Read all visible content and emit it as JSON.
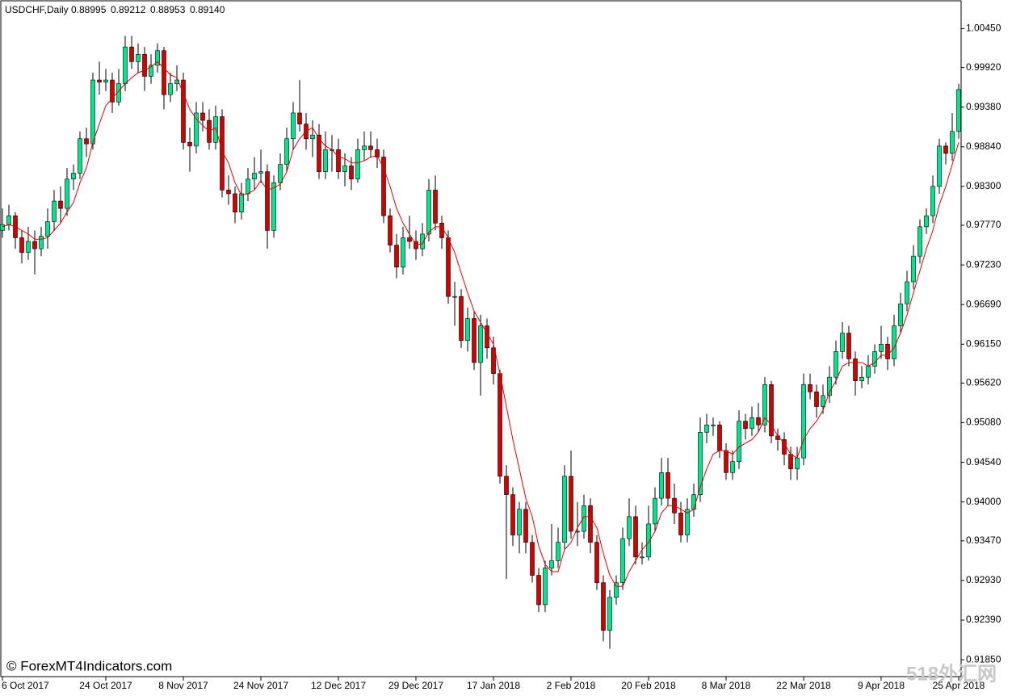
{
  "chart_data": {
    "type": "candlestick",
    "title": "USDCHF,Daily",
    "quote": [
      "0.88995",
      "0.89212",
      "0.88953",
      "0.89140"
    ],
    "watermark": "© ForexMT4Indicators.com",
    "corner_mark": "518外汇网",
    "bull_color": "#00e68a",
    "bear_color": "#d40000",
    "wick_color": "#000000",
    "ylim": [
      0.9162,
      1.0084
    ],
    "yticks": [
      {
        "value": 1.0045,
        "label": "1.00450"
      },
      {
        "value": 0.9992,
        "label": "0.99920"
      },
      {
        "value": 0.9938,
        "label": "0.99380"
      },
      {
        "value": 0.9884,
        "label": "0.98840"
      },
      {
        "value": 0.983,
        "label": "0.98300"
      },
      {
        "value": 0.9777,
        "label": "0.97770"
      },
      {
        "value": 0.9723,
        "label": "0.97230"
      },
      {
        "value": 0.9669,
        "label": "0.96690"
      },
      {
        "value": 0.9615,
        "label": "0.96150"
      },
      {
        "value": 0.9562,
        "label": "0.95620"
      },
      {
        "value": 0.9508,
        "label": "0.95080"
      },
      {
        "value": 0.9454,
        "label": "0.94540"
      },
      {
        "value": 0.94,
        "label": "0.94000"
      },
      {
        "value": 0.9347,
        "label": "0.93470"
      },
      {
        "value": 0.9293,
        "label": "0.92930"
      },
      {
        "value": 0.9239,
        "label": "0.92390"
      },
      {
        "value": 0.9185,
        "label": "0.91850"
      }
    ],
    "categories": [
      "6 Oct 2017",
      null,
      null,
      null,
      null,
      null,
      null,
      null,
      null,
      null,
      null,
      null,
      null,
      null,
      null,
      null,
      "24 Oct 2017",
      null,
      null,
      null,
      null,
      null,
      null,
      null,
      null,
      null,
      null,
      null,
      "8 Nov 2017",
      null,
      null,
      null,
      null,
      null,
      null,
      null,
      null,
      null,
      null,
      null,
      "24 Nov 2017",
      null,
      null,
      null,
      null,
      null,
      null,
      null,
      null,
      null,
      null,
      null,
      "12 Dec 2017",
      null,
      null,
      null,
      null,
      null,
      null,
      null,
      null,
      null,
      null,
      null,
      "29 Dec 2017",
      null,
      null,
      null,
      null,
      null,
      null,
      null,
      null,
      null,
      null,
      null,
      "17 Jan 2018",
      null,
      null,
      null,
      null,
      null,
      null,
      null,
      null,
      null,
      null,
      null,
      "2 Feb 2018",
      null,
      null,
      null,
      null,
      null,
      null,
      null,
      null,
      null,
      null,
      null,
      "20 Feb 2018",
      null,
      null,
      null,
      null,
      null,
      null,
      null,
      null,
      null,
      null,
      null,
      "8 Mar 2018",
      null,
      null,
      null,
      null,
      null,
      null,
      null,
      null,
      null,
      null,
      null,
      "22 Mar 2018",
      null,
      null,
      null,
      null,
      null,
      null,
      null,
      null,
      null,
      null,
      null,
      "9 Apr 2018",
      null,
      null,
      null,
      null,
      null,
      null,
      null,
      null,
      null,
      null,
      null,
      "25 Apr 2018"
    ],
    "candles": [
      [
        0.977,
        0.98,
        0.976,
        0.9778
      ],
      [
        0.9778,
        0.9805,
        0.977,
        0.979
      ],
      [
        0.979,
        0.9795,
        0.9745,
        0.976
      ],
      [
        0.976,
        0.977,
        0.9725,
        0.974
      ],
      [
        0.974,
        0.9775,
        0.973,
        0.9755
      ],
      [
        0.9755,
        0.977,
        0.971,
        0.9745
      ],
      [
        0.9745,
        0.9775,
        0.9735,
        0.9762
      ],
      [
        0.9762,
        0.98,
        0.9745,
        0.9782
      ],
      [
        0.9782,
        0.9825,
        0.977,
        0.981
      ],
      [
        0.981,
        0.983,
        0.978,
        0.98
      ],
      [
        0.98,
        0.9855,
        0.979,
        0.984
      ],
      [
        0.984,
        0.986,
        0.9825,
        0.9848
      ],
      [
        0.9848,
        0.9905,
        0.984,
        0.9895
      ],
      [
        0.9895,
        0.991,
        0.987,
        0.9888
      ],
      [
        0.9888,
        0.9985,
        0.988,
        0.9975
      ],
      [
        0.9975,
        1.0,
        0.9955,
        0.9972
      ],
      [
        0.9972,
        0.999,
        0.996,
        0.9975
      ],
      [
        0.9975,
        0.9985,
        0.993,
        0.9945
      ],
      [
        0.9945,
        0.999,
        0.994,
        0.997
      ],
      [
        0.997,
        1.0035,
        0.996,
        1.002
      ],
      [
        1.002,
        1.0035,
        0.999,
        1.0
      ],
      [
        1.0,
        1.0025,
        0.9985,
        1.001
      ],
      [
        1.001,
        1.002,
        0.996,
        0.998
      ],
      [
        0.998,
        1.001,
        0.997,
        0.9995
      ],
      [
        0.9995,
        1.0025,
        0.9985,
        1.0015
      ],
      [
        1.0015,
        1.002,
        0.9935,
        0.9955
      ],
      [
        0.9955,
        0.9985,
        0.9945,
        0.997
      ],
      [
        0.997,
        0.9995,
        0.996,
        0.9975
      ],
      [
        0.9975,
        0.9985,
        0.988,
        0.989
      ],
      [
        0.989,
        0.991,
        0.985,
        0.9885
      ],
      [
        0.9885,
        0.9945,
        0.9875,
        0.993
      ],
      [
        0.993,
        0.9945,
        0.9905,
        0.992
      ],
      [
        0.992,
        0.9935,
        0.988,
        0.989
      ],
      [
        0.989,
        0.994,
        0.988,
        0.9925
      ],
      [
        0.9925,
        0.9935,
        0.9815,
        0.9825
      ],
      [
        0.9825,
        0.9845,
        0.9805,
        0.982
      ],
      [
        0.982,
        0.983,
        0.978,
        0.9795
      ],
      [
        0.9795,
        0.9835,
        0.9785,
        0.982
      ],
      [
        0.982,
        0.9855,
        0.981,
        0.984
      ],
      [
        0.984,
        0.987,
        0.9825,
        0.9848
      ],
      [
        0.9848,
        0.988,
        0.9835,
        0.985
      ],
      [
        0.985,
        0.986,
        0.9745,
        0.977
      ],
      [
        0.977,
        0.9845,
        0.976,
        0.9835
      ],
      [
        0.9835,
        0.9875,
        0.9825,
        0.986
      ],
      [
        0.986,
        0.991,
        0.985,
        0.9895
      ],
      [
        0.9895,
        0.9945,
        0.988,
        0.993
      ],
      [
        0.993,
        0.9975,
        0.9905,
        0.9915
      ],
      [
        0.9915,
        0.993,
        0.988,
        0.9895
      ],
      [
        0.9895,
        0.992,
        0.987,
        0.99
      ],
      [
        0.99,
        0.9915,
        0.984,
        0.985
      ],
      [
        0.985,
        0.9905,
        0.984,
        0.988
      ],
      [
        0.988,
        0.99,
        0.985,
        0.988
      ],
      [
        0.988,
        0.9895,
        0.984,
        0.985
      ],
      [
        0.985,
        0.9875,
        0.983,
        0.9858
      ],
      [
        0.9858,
        0.987,
        0.9825,
        0.984
      ],
      [
        0.984,
        0.9895,
        0.9835,
        0.988
      ],
      [
        0.988,
        0.9905,
        0.9865,
        0.9885
      ],
      [
        0.9885,
        0.9905,
        0.987,
        0.988
      ],
      [
        0.988,
        0.9895,
        0.9855,
        0.987
      ],
      [
        0.987,
        0.988,
        0.978,
        0.979
      ],
      [
        0.979,
        0.98,
        0.974,
        0.975
      ],
      [
        0.975,
        0.9765,
        0.9705,
        0.972
      ],
      [
        0.972,
        0.9775,
        0.971,
        0.976
      ],
      [
        0.976,
        0.979,
        0.9745,
        0.9755
      ],
      [
        0.9755,
        0.977,
        0.973,
        0.9745
      ],
      [
        0.9745,
        0.978,
        0.9735,
        0.9765
      ],
      [
        0.9765,
        0.984,
        0.9755,
        0.9825
      ],
      [
        0.9825,
        0.9845,
        0.977,
        0.978
      ],
      [
        0.978,
        0.979,
        0.9745,
        0.976
      ],
      [
        0.976,
        0.977,
        0.967,
        0.968
      ],
      [
        0.968,
        0.97,
        0.964,
        0.968
      ],
      [
        0.968,
        0.969,
        0.961,
        0.962
      ],
      [
        0.962,
        0.9665,
        0.9605,
        0.965
      ],
      [
        0.965,
        0.966,
        0.958,
        0.959
      ],
      [
        0.959,
        0.9655,
        0.9545,
        0.964
      ],
      [
        0.964,
        0.965,
        0.9595,
        0.961
      ],
      [
        0.961,
        0.9625,
        0.956,
        0.9575
      ],
      [
        0.9575,
        0.958,
        0.9425,
        0.9435
      ],
      [
        0.9435,
        0.945,
        0.9295,
        0.941
      ],
      [
        0.941,
        0.942,
        0.934,
        0.9355
      ],
      [
        0.9355,
        0.94,
        0.933,
        0.939
      ],
      [
        0.939,
        0.94,
        0.933,
        0.9345
      ],
      [
        0.9345,
        0.9355,
        0.929,
        0.93
      ],
      [
        0.93,
        0.931,
        0.925,
        0.926
      ],
      [
        0.926,
        0.932,
        0.925,
        0.931
      ],
      [
        0.931,
        0.937,
        0.93,
        0.932
      ],
      [
        0.932,
        0.9365,
        0.931,
        0.9345
      ],
      [
        0.9345,
        0.945,
        0.9335,
        0.9435
      ],
      [
        0.9435,
        0.947,
        0.935,
        0.936
      ],
      [
        0.936,
        0.94,
        0.934,
        0.936
      ],
      [
        0.936,
        0.941,
        0.935,
        0.9395
      ],
      [
        0.9395,
        0.9405,
        0.933,
        0.9345
      ],
      [
        0.9345,
        0.9355,
        0.928,
        0.929
      ],
      [
        0.929,
        0.93,
        0.921,
        0.9225
      ],
      [
        0.9225,
        0.928,
        0.92,
        0.927
      ],
      [
        0.927,
        0.93,
        0.926,
        0.929
      ],
      [
        0.929,
        0.9365,
        0.928,
        0.935
      ],
      [
        0.935,
        0.9405,
        0.934,
        0.938
      ],
      [
        0.938,
        0.9395,
        0.9315,
        0.9325
      ],
      [
        0.9325,
        0.9345,
        0.9315,
        0.9325
      ],
      [
        0.9325,
        0.9395,
        0.932,
        0.937
      ],
      [
        0.937,
        0.942,
        0.936,
        0.9405
      ],
      [
        0.9405,
        0.946,
        0.9395,
        0.944
      ],
      [
        0.944,
        0.946,
        0.9395,
        0.9405
      ],
      [
        0.9405,
        0.9425,
        0.937,
        0.9385
      ],
      [
        0.9385,
        0.94,
        0.9345,
        0.9355
      ],
      [
        0.9355,
        0.9405,
        0.9345,
        0.939
      ],
      [
        0.939,
        0.9425,
        0.938,
        0.941
      ],
      [
        0.941,
        0.9515,
        0.94,
        0.9495
      ],
      [
        0.9495,
        0.952,
        0.948,
        0.9505
      ],
      [
        0.9505,
        0.9515,
        0.949,
        0.9505
      ],
      [
        0.9505,
        0.951,
        0.946,
        0.947
      ],
      [
        0.947,
        0.948,
        0.943,
        0.944
      ],
      [
        0.944,
        0.947,
        0.943,
        0.9455
      ],
      [
        0.9455,
        0.9525,
        0.9445,
        0.951
      ],
      [
        0.951,
        0.952,
        0.9485,
        0.95
      ],
      [
        0.95,
        0.953,
        0.949,
        0.9515
      ],
      [
        0.9515,
        0.9535,
        0.9495,
        0.9505
      ],
      [
        0.9505,
        0.957,
        0.9495,
        0.956
      ],
      [
        0.956,
        0.9565,
        0.948,
        0.949
      ],
      [
        0.949,
        0.95,
        0.947,
        0.9485
      ],
      [
        0.9485,
        0.9495,
        0.945,
        0.9465
      ],
      [
        0.9465,
        0.9475,
        0.943,
        0.9445
      ],
      [
        0.9445,
        0.9475,
        0.943,
        0.946
      ],
      [
        0.946,
        0.9575,
        0.945,
        0.956
      ],
      [
        0.956,
        0.9575,
        0.954,
        0.955
      ],
      [
        0.955,
        0.956,
        0.9515,
        0.953
      ],
      [
        0.953,
        0.956,
        0.952,
        0.9545
      ],
      [
        0.9545,
        0.9585,
        0.9535,
        0.957
      ],
      [
        0.957,
        0.962,
        0.956,
        0.9605
      ],
      [
        0.9605,
        0.9645,
        0.9595,
        0.963
      ],
      [
        0.963,
        0.964,
        0.9585,
        0.9595
      ],
      [
        0.9595,
        0.9605,
        0.9545,
        0.9565
      ],
      [
        0.9565,
        0.9585,
        0.9555,
        0.957
      ],
      [
        0.957,
        0.96,
        0.956,
        0.9585
      ],
      [
        0.9585,
        0.9615,
        0.9575,
        0.9605
      ],
      [
        0.9605,
        0.964,
        0.9595,
        0.9615
      ],
      [
        0.9615,
        0.9625,
        0.958,
        0.9595
      ],
      [
        0.9595,
        0.9655,
        0.9585,
        0.964
      ],
      [
        0.964,
        0.9685,
        0.963,
        0.967
      ],
      [
        0.967,
        0.9715,
        0.966,
        0.97
      ],
      [
        0.97,
        0.975,
        0.969,
        0.9735
      ],
      [
        0.9735,
        0.9785,
        0.9725,
        0.9775
      ],
      [
        0.9775,
        0.98,
        0.9765,
        0.979
      ],
      [
        0.979,
        0.9845,
        0.978,
        0.983
      ],
      [
        0.983,
        0.9895,
        0.982,
        0.9885
      ],
      [
        0.9885,
        0.989,
        0.986,
        0.9875
      ],
      [
        0.9875,
        0.993,
        0.9865,
        0.9905
      ],
      [
        0.9905,
        0.997,
        0.9895,
        0.9962
      ]
    ],
    "ma": {
      "color": "#e00000",
      "values": [
        0.9775,
        0.9778,
        0.9775,
        0.977,
        0.9765,
        0.9758,
        0.9758,
        0.976,
        0.977,
        0.978,
        0.9795,
        0.9808,
        0.9835,
        0.9855,
        0.989,
        0.9915,
        0.994,
        0.995,
        0.996,
        0.997,
        0.9978,
        0.9985,
        0.9988,
        0.9993,
        1.0,
        0.9991,
        0.9982,
        0.9978,
        0.9957,
        0.9935,
        0.9922,
        0.9913,
        0.9905,
        0.991,
        0.9878,
        0.9862,
        0.9835,
        0.9818,
        0.982,
        0.9825,
        0.9838,
        0.9825,
        0.9828,
        0.9833,
        0.985,
        0.988,
        0.9895,
        0.9905,
        0.991,
        0.9895,
        0.9885,
        0.988,
        0.987,
        0.9868,
        0.9862,
        0.9862,
        0.9865,
        0.987,
        0.9872,
        0.9855,
        0.983,
        0.98,
        0.978,
        0.9765,
        0.975,
        0.9752,
        0.9768,
        0.9775,
        0.9775,
        0.976,
        0.974,
        0.9712,
        0.9685,
        0.966,
        0.9645,
        0.963,
        0.9615,
        0.9575,
        0.953,
        0.9485,
        0.9445,
        0.9405,
        0.938,
        0.934,
        0.9315,
        0.9305,
        0.9305,
        0.9335,
        0.9345,
        0.9365,
        0.938,
        0.938,
        0.9365,
        0.933,
        0.93,
        0.9285,
        0.9285,
        0.9305,
        0.932,
        0.9335,
        0.9345,
        0.936,
        0.9385,
        0.9395,
        0.9395,
        0.939,
        0.9385,
        0.939,
        0.942,
        0.9445,
        0.9465,
        0.947,
        0.947,
        0.9465,
        0.9475,
        0.948,
        0.9485,
        0.9495,
        0.9515,
        0.9505,
        0.949,
        0.948,
        0.9465,
        0.946,
        0.9485,
        0.95,
        0.951,
        0.9525,
        0.955,
        0.9565,
        0.9585,
        0.959,
        0.959,
        0.959,
        0.9585,
        0.959,
        0.96,
        0.96,
        0.961,
        0.963,
        0.9655,
        0.9685,
        0.9715,
        0.9745,
        0.977,
        0.9805,
        0.983,
        0.986,
        0.989
      ]
    }
  }
}
